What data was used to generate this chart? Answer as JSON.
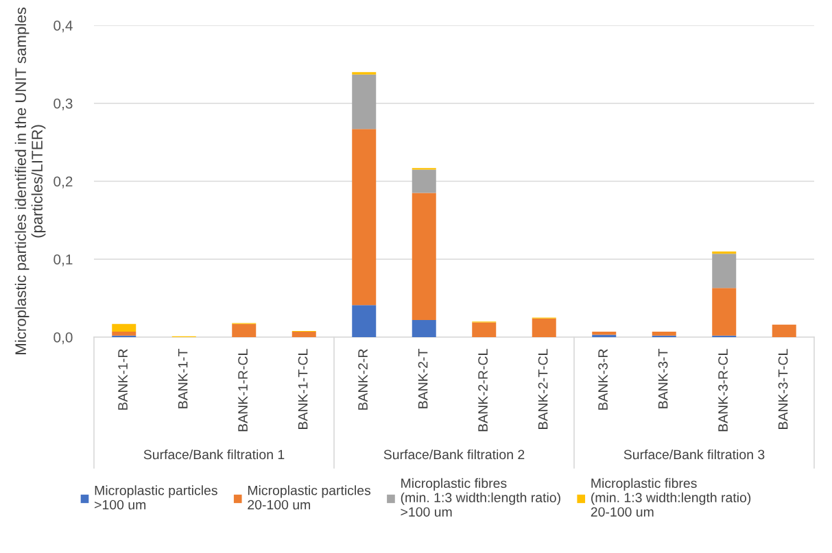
{
  "chart_data": {
    "type": "bar",
    "stacked": true,
    "ylabel": "Microplastic particles identified in the UNIT samples\n(particles/LITER)",
    "categories": [
      "BANK-1-R",
      "BANK-1-T",
      "BANK-1-R-CL",
      "BANK-1-T-CL",
      "BANK-2-R",
      "BANK-2-T",
      "BANK-2-R-CL",
      "BANK-2-T-CL",
      "BANK-3-R",
      "BANK-3-T",
      "BANK-3-R-CL",
      "BANK-3-T-CL"
    ],
    "series": [
      {
        "name": "Microplastic particles\n>100 um",
        "color": "#4472c4",
        "values": [
          0.002,
          0,
          0,
          0,
          0.041,
          0.022,
          0,
          0,
          0.003,
          0.002,
          0.002,
          0
        ]
      },
      {
        "name": "Microplastic particles\n20-100 um",
        "color": "#ed7d31",
        "values": [
          0.005,
          0,
          0.017,
          0.007,
          0.226,
          0.163,
          0.019,
          0.024,
          0.004,
          0.005,
          0.061,
          0.016
        ]
      },
      {
        "name": "Microplastic fibres\n(min. 1:3 width:length ratio)\n>100 um",
        "color": "#a5a5a5",
        "values": [
          0,
          0,
          0,
          0,
          0.07,
          0.03,
          0,
          0,
          0,
          0,
          0.044,
          0
        ]
      },
      {
        "name": "Microplastic fibres\n(min. 1:3 width:length ratio)\n20-100 um",
        "color": "#ffc000",
        "values": [
          0.01,
          0.001,
          0.001,
          0.001,
          0.003,
          0.002,
          0.001,
          0.001,
          0,
          0,
          0.003,
          0
        ]
      }
    ],
    "ylim": [
      0,
      0.4
    ],
    "yticks": [
      {
        "value": 0,
        "label": "0,0"
      },
      {
        "value": 0.1,
        "label": "0,1"
      },
      {
        "value": 0.2,
        "label": "0,2"
      },
      {
        "value": 0.3,
        "label": "0,3"
      },
      {
        "value": 0.4,
        "label": "0,4"
      }
    ],
    "grid": "y",
    "legend": "bottom",
    "annotations": [
      "Surface/Bank filtration 1",
      "Surface/Bank filtration 2",
      "Surface/Bank filtration 3"
    ]
  }
}
